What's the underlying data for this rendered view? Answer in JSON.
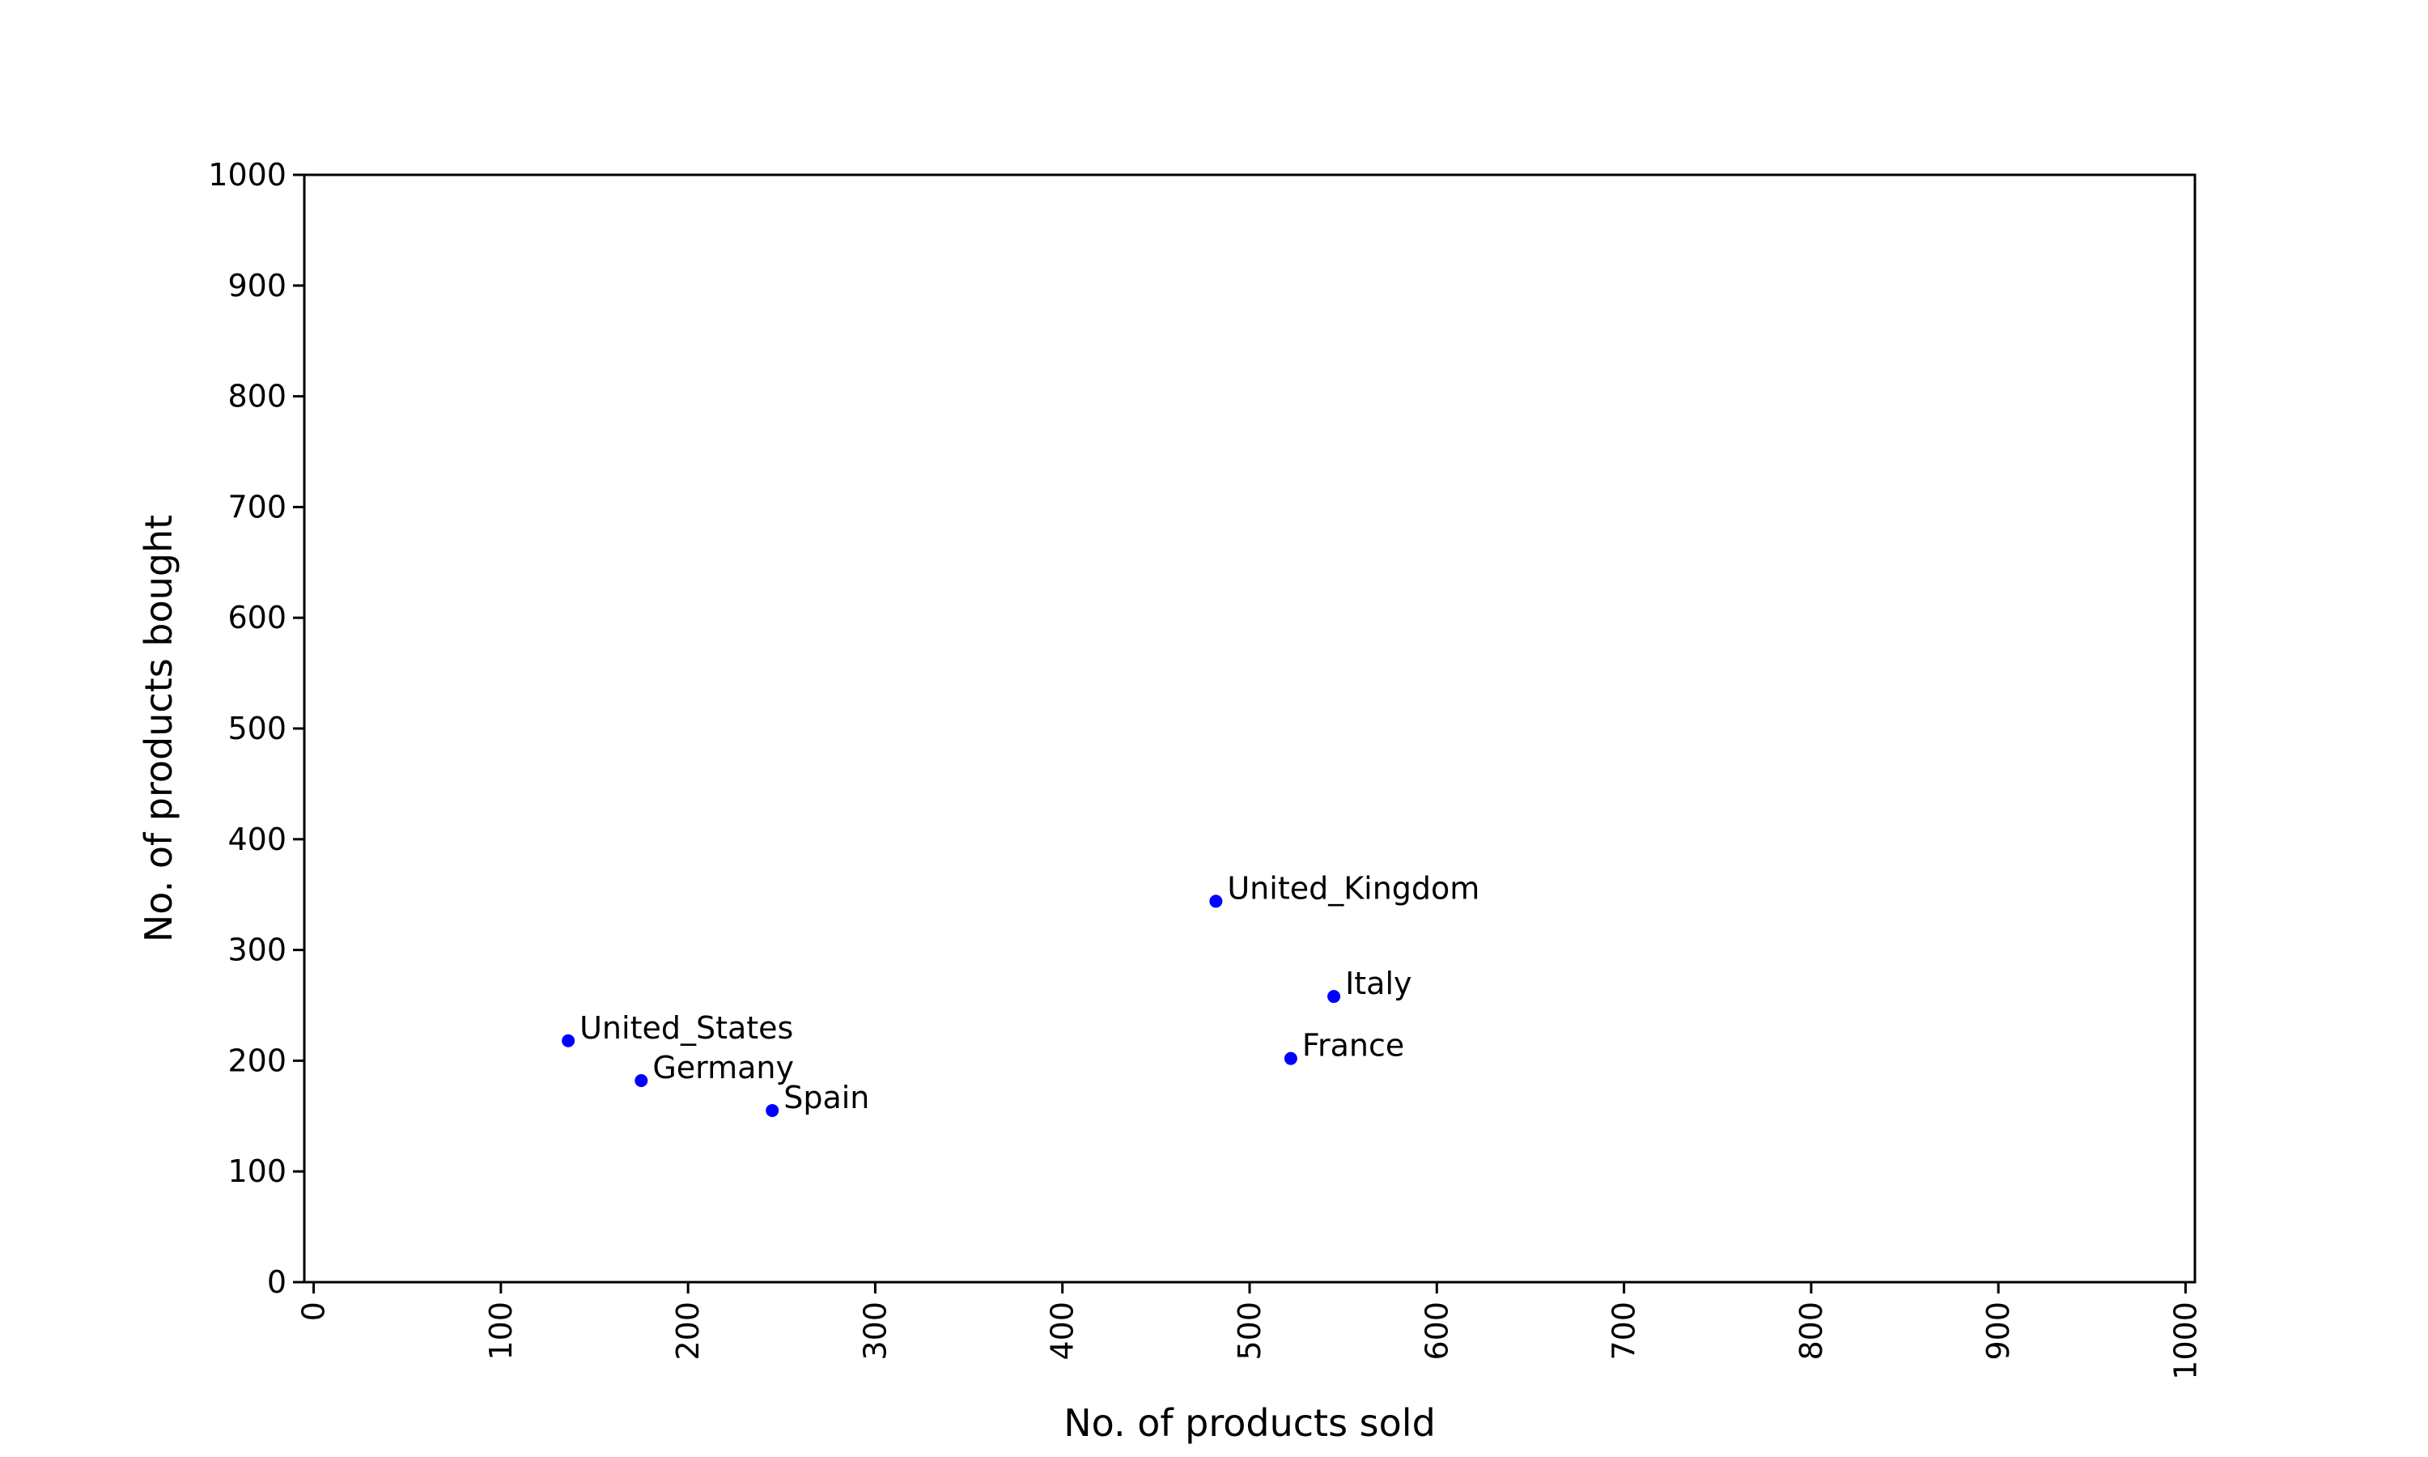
{
  "chart_data": {
    "type": "scatter",
    "title": "",
    "xlabel": "No. of products sold",
    "ylabel": "No. of products bought",
    "xlim": [
      -5,
      1005
    ],
    "ylim": [
      0,
      1000
    ],
    "xticks": [
      "0",
      "100",
      "200",
      "300",
      "400",
      "500",
      "600",
      "700",
      "800",
      "900",
      "1000"
    ],
    "yticks": [
      "0",
      "100",
      "200",
      "300",
      "400",
      "500",
      "600",
      "700",
      "800",
      "900",
      "1000"
    ],
    "grid": false,
    "legend": "none",
    "marker_color": "#0000ff",
    "points": [
      {
        "label": "United_Kingdom",
        "x": 482,
        "y": 344
      },
      {
        "label": "Italy",
        "x": 545,
        "y": 258
      },
      {
        "label": "France",
        "x": 522,
        "y": 202
      },
      {
        "label": "United_States",
        "x": 136,
        "y": 218
      },
      {
        "label": "Germany",
        "x": 175,
        "y": 182
      },
      {
        "label": "Spain",
        "x": 245,
        "y": 155
      }
    ]
  }
}
